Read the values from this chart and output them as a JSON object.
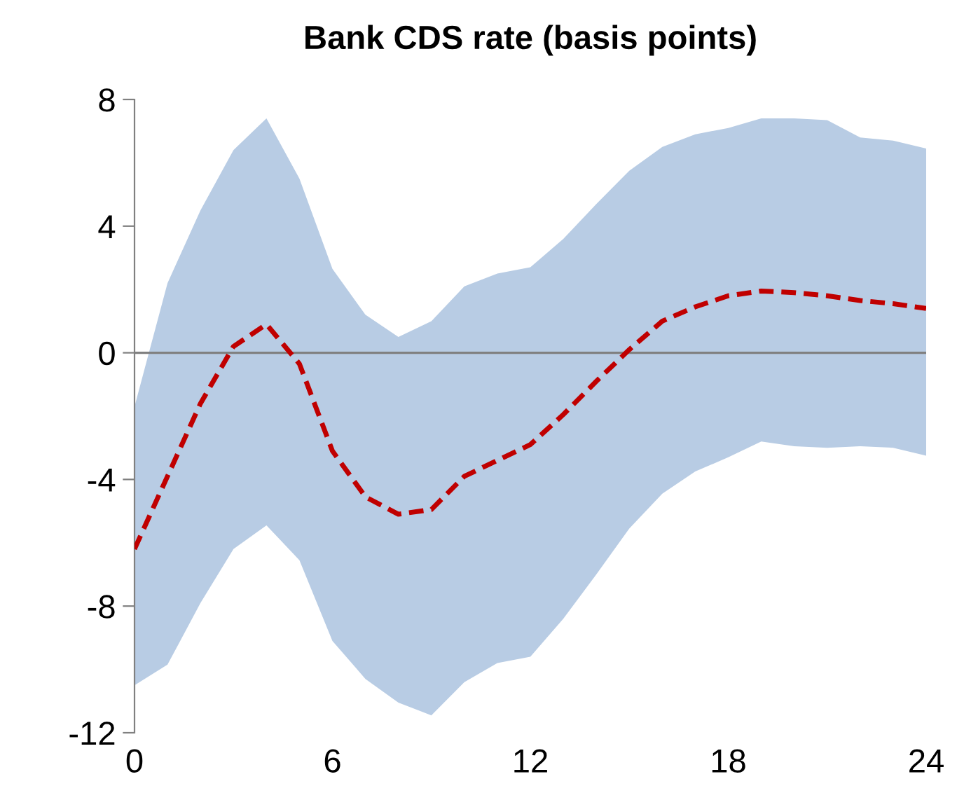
{
  "chart_data": {
    "type": "line",
    "title": "Bank CDS rate (basis points)",
    "x": [
      0,
      1,
      2,
      3,
      4,
      5,
      6,
      7,
      8,
      9,
      10,
      11,
      12,
      13,
      14,
      15,
      16,
      17,
      18,
      19,
      20,
      21,
      22,
      23,
      24
    ],
    "series": [
      {
        "color": "#c00000",
        "line_style": "dashed",
        "values": [
          -6.2,
          -3.9,
          -1.6,
          0.2,
          0.9,
          -0.35,
          -3.1,
          -4.55,
          -5.1,
          -4.95,
          -3.9,
          -3.4,
          -2.9,
          -1.95,
          -0.9,
          0.1,
          1.0,
          1.45,
          1.8,
          1.95,
          1.9,
          1.8,
          1.65,
          1.55,
          1.4
        ],
        "upper": [
          -1.7,
          2.2,
          4.5,
          6.4,
          7.4,
          5.5,
          2.65,
          1.2,
          0.5,
          1.0,
          2.1,
          2.5,
          2.7,
          3.6,
          4.7,
          5.75,
          6.5,
          6.9,
          7.1,
          7.4,
          7.4,
          7.35,
          6.8,
          6.7,
          6.45
        ],
        "lower": [
          -10.5,
          -9.85,
          -7.9,
          -6.2,
          -5.45,
          -6.55,
          -9.1,
          -10.3,
          -11.05,
          -11.45,
          -10.4,
          -9.8,
          -9.6,
          -8.4,
          -7.0,
          -5.55,
          -4.45,
          -3.75,
          -3.3,
          -2.8,
          -2.95,
          -3.0,
          -2.95,
          -3.0,
          -3.25
        ]
      }
    ],
    "xlim": [
      0,
      24
    ],
    "xticks": [
      0,
      6,
      12,
      18,
      24
    ],
    "ylim": [
      -12,
      8
    ],
    "yticks": [
      -12,
      -8,
      -4,
      0,
      4,
      8
    ],
    "ref_lines": [
      {
        "axis": "y",
        "value": 0,
        "color": "#808080"
      }
    ],
    "grid": false,
    "legend": false,
    "marker": "none"
  }
}
